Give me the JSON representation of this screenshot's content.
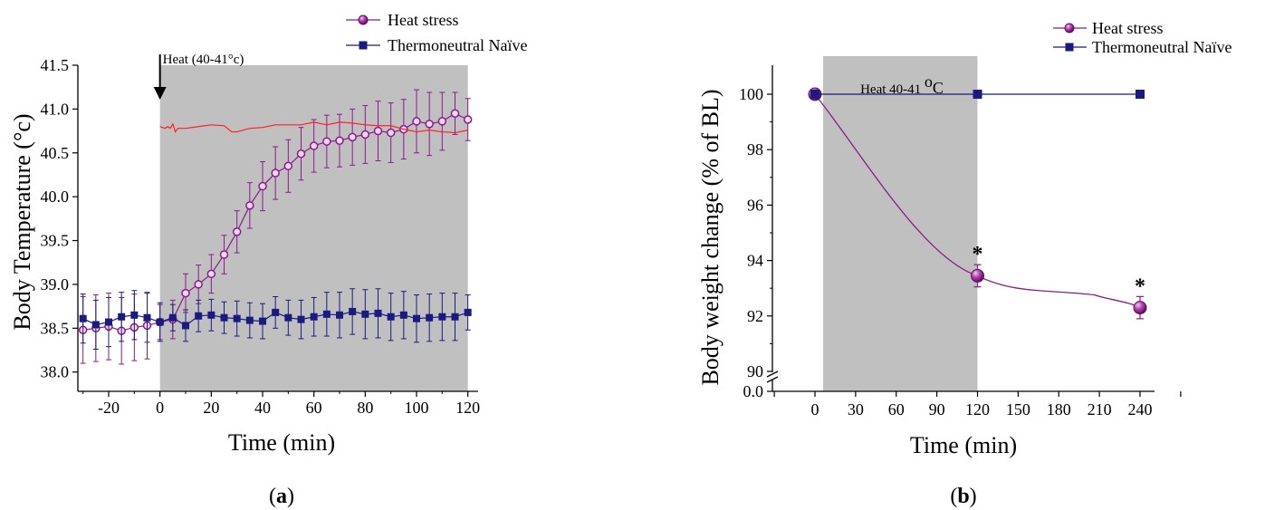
{
  "chart_data": [
    {
      "type": "line",
      "panel_label": "a",
      "xlabel": "Time (min)",
      "ylabel": "Body Temperature (°c)",
      "xlim": [
        -32,
        124
      ],
      "ylim": [
        37.78,
        41.5
      ],
      "x_ticks": [
        -20,
        0,
        20,
        40,
        60,
        80,
        100,
        120
      ],
      "y_ticks": [
        38.0,
        38.5,
        39.0,
        39.5,
        40.0,
        40.5,
        41.0,
        41.5
      ],
      "shaded_region": {
        "x": [
          0,
          120
        ],
        "color": "#c0c0c0"
      },
      "annotation": {
        "text": "Heat (40-41°c)",
        "x": 0,
        "arrow": "down"
      },
      "legend": {
        "position": "top-right"
      },
      "series": [
        {
          "name": "Heat stress",
          "color": "#8b1a8b",
          "marker": "circle",
          "x": [
            -30,
            -25,
            -20,
            -15,
            -10,
            -5,
            0,
            5,
            10,
            15,
            20,
            25,
            30,
            35,
            40,
            45,
            50,
            55,
            60,
            65,
            70,
            75,
            80,
            85,
            90,
            95,
            100,
            105,
            110,
            115,
            120
          ],
          "y": [
            38.48,
            38.5,
            38.52,
            38.47,
            38.51,
            38.53,
            38.57,
            38.6,
            38.9,
            39.0,
            39.12,
            39.34,
            39.6,
            39.9,
            40.12,
            40.27,
            40.35,
            40.49,
            40.58,
            40.63,
            40.64,
            40.68,
            40.71,
            40.75,
            40.73,
            40.77,
            40.86,
            40.83,
            40.86,
            40.95,
            40.88
          ],
          "error": [
            0.38,
            0.38,
            0.38,
            0.38,
            0.38,
            0.38,
            0.2,
            0.22,
            0.22,
            0.22,
            0.22,
            0.22,
            0.24,
            0.26,
            0.28,
            0.3,
            0.3,
            0.3,
            0.3,
            0.3,
            0.3,
            0.32,
            0.33,
            0.34,
            0.34,
            0.34,
            0.36,
            0.36,
            0.33,
            0.24,
            0.24
          ]
        },
        {
          "name": "Thermoneutral Naïve",
          "color": "#1a1a80",
          "marker": "square",
          "x": [
            -30,
            -25,
            -20,
            -15,
            -10,
            -5,
            0,
            5,
            10,
            15,
            20,
            25,
            30,
            35,
            40,
            45,
            50,
            55,
            60,
            65,
            70,
            75,
            80,
            85,
            90,
            95,
            100,
            105,
            110,
            115,
            120
          ],
          "y": [
            38.61,
            38.54,
            38.57,
            38.63,
            38.65,
            38.62,
            38.57,
            38.62,
            38.53,
            38.64,
            38.65,
            38.62,
            38.61,
            38.59,
            38.58,
            38.68,
            38.62,
            38.6,
            38.63,
            38.66,
            38.65,
            38.69,
            38.66,
            38.67,
            38.63,
            38.65,
            38.61,
            38.62,
            38.63,
            38.63,
            38.68
          ],
          "error": [
            0.28,
            0.28,
            0.28,
            0.28,
            0.28,
            0.28,
            0.22,
            0.15,
            0.18,
            0.18,
            0.18,
            0.18,
            0.2,
            0.2,
            0.2,
            0.18,
            0.2,
            0.22,
            0.22,
            0.25,
            0.26,
            0.26,
            0.28,
            0.28,
            0.27,
            0.27,
            0.27,
            0.27,
            0.27,
            0.27,
            0.2
          ]
        },
        {
          "color": "#ff2020",
          "marker": "none",
          "x": [
            0,
            2,
            3,
            4,
            5,
            6,
            7,
            10,
            15,
            20,
            25,
            28,
            30,
            35,
            40,
            45,
            50,
            55,
            60,
            65,
            70,
            75,
            80,
            85,
            90,
            95,
            100,
            105,
            110,
            115,
            120
          ],
          "y": [
            40.8,
            40.78,
            40.8,
            40.78,
            40.83,
            40.74,
            40.78,
            40.78,
            40.8,
            40.82,
            40.81,
            40.74,
            40.74,
            40.78,
            40.79,
            40.82,
            40.82,
            40.82,
            40.85,
            40.82,
            40.85,
            40.84,
            40.82,
            40.81,
            40.81,
            40.77,
            40.74,
            40.76,
            40.74,
            40.73,
            40.76
          ]
        }
      ]
    },
    {
      "type": "line",
      "panel_label": "b",
      "xlabel": "Time (min)",
      "ylabel": "Body weight change (% of BL)",
      "x_ticks": [
        0,
        30,
        60,
        90,
        120,
        150,
        180,
        210,
        240
      ],
      "y_ticks": [
        90,
        92,
        94,
        96,
        98,
        100
      ],
      "y_ticks_below_break": [
        "0.0"
      ],
      "y_axis_break": true,
      "ylim": [
        89.3,
        101
      ],
      "xlim": [
        -30,
        270
      ],
      "shaded_region": {
        "x": [
          6,
          120
        ],
        "color": "#c0c0c0"
      },
      "annotation": {
        "text": "Heat 40-41 °C",
        "prefix": "Heat 40-41 ",
        "superscript": "o",
        "suffix": "C"
      },
      "legend": {
        "position": "top-right"
      },
      "significance": [
        "*",
        "*"
      ],
      "series": [
        {
          "name": "Heat stress",
          "color": "#8b1a8b",
          "marker": "circle",
          "smooth": true,
          "x": [
            0,
            120,
            240
          ],
          "y": [
            100,
            93.45,
            92.3
          ],
          "error": [
            0,
            0.4,
            0.4
          ]
        },
        {
          "name": "Thermoneutral Naïve",
          "color": "#1a1a80",
          "marker": "square",
          "x": [
            0,
            120,
            240
          ],
          "y": [
            100,
            100,
            100
          ]
        }
      ]
    }
  ]
}
